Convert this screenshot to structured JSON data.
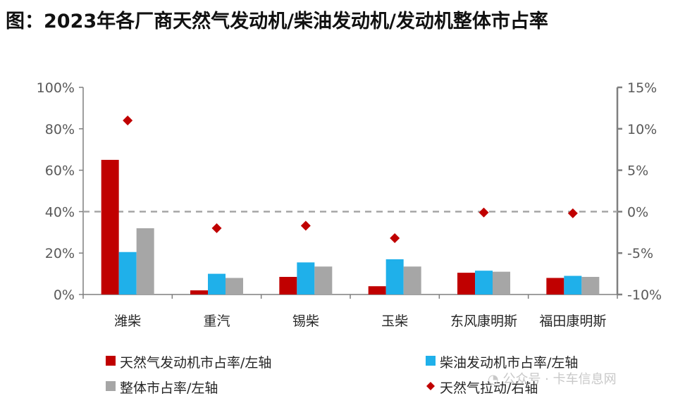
{
  "title": "图：2023年各厂商天然气发动机/柴油发动机/发动机整体市占率",
  "watermark": "公众号 · 卡车信息网",
  "colors": {
    "gas_share": "#C00000",
    "diesel_share": "#1FB0EA",
    "overall_share": "#A6A6A6",
    "gas_pull": "#C00000",
    "axis": "#7F7F7F",
    "zero_line": "#A6A6A6"
  },
  "chart_data": {
    "type": "bar",
    "categories": [
      "潍柴",
      "重汽",
      "锡柴",
      "玉柴",
      "东风康明斯",
      "福田康明斯"
    ],
    "series": [
      {
        "name": "天然气发动机市占率/左轴",
        "axis": "left",
        "kind": "bar",
        "color": "#C00000",
        "values": [
          65,
          2,
          8.5,
          4,
          10.5,
          8
        ]
      },
      {
        "name": "柴油发动机市占率/左轴",
        "axis": "left",
        "kind": "bar",
        "color": "#1FB0EA",
        "values": [
          20.5,
          10,
          15.5,
          17,
          11.5,
          9
        ]
      },
      {
        "name": "整体市占率/左轴",
        "axis": "left",
        "kind": "bar",
        "color": "#A6A6A6",
        "values": [
          32,
          8,
          13.5,
          13.5,
          11,
          8.5
        ]
      },
      {
        "name": "天然气拉动/右轴",
        "axis": "right",
        "kind": "scatter",
        "marker": "diamond",
        "color": "#C00000",
        "values": [
          11,
          -2,
          -1.7,
          -3.2,
          -0.1,
          -0.2
        ]
      }
    ],
    "left_axis": {
      "ylim": [
        0,
        100
      ],
      "ticks": [
        0,
        20,
        40,
        60,
        80,
        100
      ],
      "tick_labels": [
        "0%",
        "20%",
        "40%",
        "60%",
        "80%",
        "100%"
      ]
    },
    "right_axis": {
      "ylim": [
        -10,
        15
      ],
      "ticks": [
        -10,
        -5,
        0,
        5,
        10,
        15
      ],
      "tick_labels": [
        "-10%",
        "-5%",
        "0%",
        "5%",
        "10%",
        "15%"
      ]
    },
    "reference_line": {
      "axis": "right",
      "value": 0,
      "style": "dashed"
    },
    "grid": false,
    "legend_position": "bottom"
  }
}
